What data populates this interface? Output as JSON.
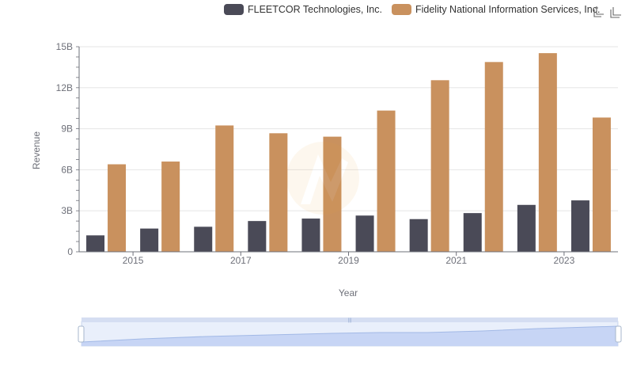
{
  "legend": {
    "series_a": "FLEETCOR Technologies, Inc.",
    "series_b": "Fidelity National Information Services, Inc."
  },
  "toolbox": {
    "zoom_icon": "zoom-select-icon",
    "restore_icon": "restore-icon"
  },
  "colors": {
    "series_a": "#4a4a57",
    "series_b": "#c9915e",
    "grid": "#e6e6e6",
    "axis": "#6e7079"
  },
  "chart_data": {
    "type": "bar",
    "title": "",
    "xlabel": "Year",
    "ylabel": "Revenue",
    "categories": [
      "2014",
      "2015",
      "2016",
      "2017",
      "2018",
      "2019",
      "2020",
      "2021",
      "2022",
      "2023"
    ],
    "x_tick_labels": [
      "2015",
      "2017",
      "2019",
      "2021",
      "2023"
    ],
    "y_tick_labels": [
      "0",
      "3B",
      "6B",
      "9B",
      "12B",
      "15B"
    ],
    "ylim": [
      0,
      15
    ],
    "y_unit": "billions",
    "grid": true,
    "legend_position": "top-right",
    "series": [
      {
        "name": "FLEETCOR Technologies, Inc.",
        "values": [
          1.2,
          1.7,
          1.83,
          2.25,
          2.43,
          2.65,
          2.39,
          2.83,
          3.43,
          3.76
        ]
      },
      {
        "name": "Fidelity National Information Services, Inc.",
        "values": [
          6.4,
          6.6,
          9.24,
          8.67,
          8.42,
          10.33,
          12.55,
          13.88,
          14.53,
          9.82
        ]
      }
    ]
  }
}
